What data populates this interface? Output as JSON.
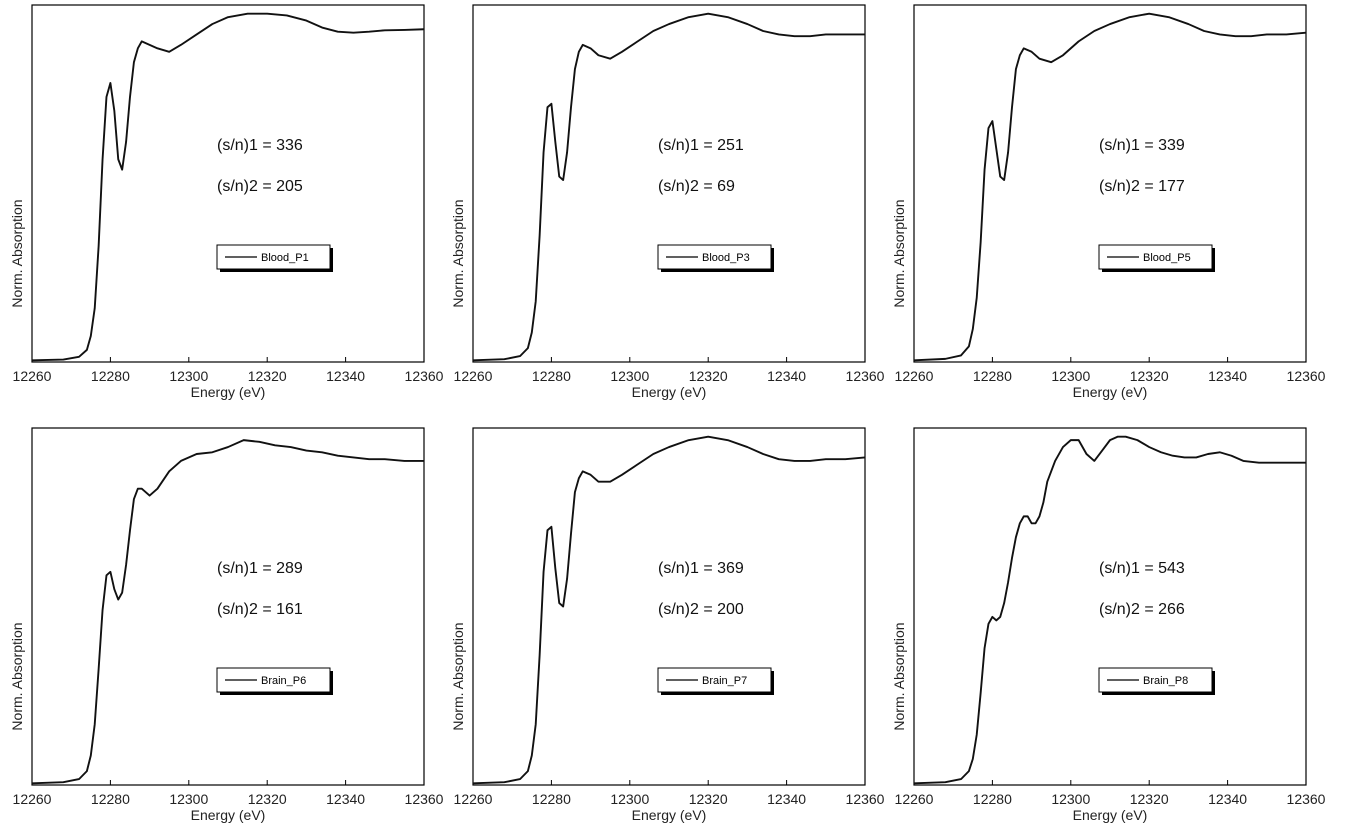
{
  "chart_data": [
    {
      "type": "line",
      "xlabel": "Energy (eV)",
      "ylabel": "Norm. Absorption",
      "xlim": [
        12260,
        12360
      ],
      "x_ticks": [
        "12260",
        "12280",
        "12300",
        "12320",
        "12340",
        "12360"
      ],
      "y_ticks_shown": false,
      "legend": {
        "position": "center",
        "entries": [
          "Blood_P1"
        ]
      },
      "annotations": [
        "(s/n)1 = 336",
        "(s/n)2 = 205"
      ],
      "series": [
        {
          "name": "Blood_P1",
          "x": [
            12260,
            12268,
            12272,
            12274,
            12275,
            12276,
            12277,
            12278,
            12279,
            12280,
            12281,
            12282,
            12283,
            12284,
            12285,
            12286,
            12287,
            12288,
            12290,
            12292,
            12295,
            12298,
            12302,
            12306,
            12310,
            12315,
            12320,
            12325,
            12330,
            12334,
            12338,
            12342,
            12346,
            12350,
            12355,
            12360
          ],
          "y": [
            0,
            0.002,
            0.01,
            0.03,
            0.07,
            0.15,
            0.33,
            0.58,
            0.76,
            0.8,
            0.72,
            0.58,
            0.55,
            0.63,
            0.76,
            0.86,
            0.9,
            0.92,
            0.91,
            0.9,
            0.89,
            0.91,
            0.94,
            0.97,
            0.99,
            1.0,
            1.0,
            0.995,
            0.98,
            0.96,
            0.948,
            0.945,
            0.948,
            0.952,
            0.953,
            0.955
          ]
        }
      ]
    },
    {
      "type": "line",
      "xlabel": "Energy (eV)",
      "ylabel": "Norm. Absorption",
      "xlim": [
        12260,
        12360
      ],
      "x_ticks": [
        "12260",
        "12280",
        "12300",
        "12320",
        "12340",
        "12360"
      ],
      "y_ticks_shown": false,
      "legend": {
        "position": "center",
        "entries": [
          "Blood_P3"
        ]
      },
      "annotations": [
        "(s/n)1 = 251",
        "(s/n)2 = 69"
      ],
      "series": [
        {
          "name": "Blood_P3",
          "x": [
            12260,
            12268,
            12272,
            12274,
            12275,
            12276,
            12277,
            12278,
            12279,
            12280,
            12281,
            12282,
            12283,
            12284,
            12285,
            12286,
            12287,
            12288,
            12290,
            12292,
            12295,
            12298,
            12302,
            12306,
            12310,
            12315,
            12320,
            12325,
            12330,
            12334,
            12338,
            12342,
            12346,
            12350,
            12355,
            12360
          ],
          "y": [
            0,
            0.003,
            0.012,
            0.035,
            0.08,
            0.17,
            0.36,
            0.6,
            0.73,
            0.74,
            0.63,
            0.53,
            0.52,
            0.6,
            0.73,
            0.84,
            0.89,
            0.91,
            0.9,
            0.88,
            0.87,
            0.89,
            0.92,
            0.95,
            0.97,
            0.99,
            1.0,
            0.99,
            0.97,
            0.95,
            0.94,
            0.935,
            0.935,
            0.94,
            0.94,
            0.94
          ]
        }
      ]
    },
    {
      "type": "line",
      "xlabel": "Energy (eV)",
      "ylabel": "Norm. Absorption",
      "xlim": [
        12260,
        12360
      ],
      "x_ticks": [
        "12260",
        "12280",
        "12300",
        "12320",
        "12340",
        "12360"
      ],
      "y_ticks_shown": false,
      "legend": {
        "position": "center",
        "entries": [
          "Blood_P5"
        ]
      },
      "annotations": [
        "(s/n)1 = 339",
        "(s/n)2 = 177"
      ],
      "series": [
        {
          "name": "Blood_P5",
          "x": [
            12260,
            12268,
            12272,
            12274,
            12275,
            12276,
            12277,
            12278,
            12279,
            12280,
            12281,
            12282,
            12283,
            12284,
            12285,
            12286,
            12287,
            12288,
            12290,
            12292,
            12295,
            12298,
            12302,
            12306,
            12310,
            12315,
            12320,
            12325,
            12330,
            12334,
            12338,
            12342,
            12346,
            12350,
            12355,
            12360
          ],
          "y": [
            0,
            0.004,
            0.014,
            0.04,
            0.09,
            0.18,
            0.34,
            0.55,
            0.67,
            0.69,
            0.61,
            0.53,
            0.52,
            0.6,
            0.73,
            0.84,
            0.88,
            0.9,
            0.89,
            0.87,
            0.86,
            0.88,
            0.92,
            0.95,
            0.97,
            0.99,
            1.0,
            0.99,
            0.97,
            0.95,
            0.94,
            0.935,
            0.935,
            0.94,
            0.94,
            0.945
          ]
        }
      ]
    },
    {
      "type": "line",
      "xlabel": "Energy (eV)",
      "ylabel": "Norm. Absorption",
      "xlim": [
        12260,
        12360
      ],
      "x_ticks": [
        "12260",
        "12280",
        "12300",
        "12320",
        "12340",
        "12360"
      ],
      "y_ticks_shown": false,
      "legend": {
        "position": "center",
        "entries": [
          "Brain_P6"
        ]
      },
      "annotations": [
        "(s/n)1 = 289",
        "(s/n)2 = 161"
      ],
      "series": [
        {
          "name": "Brain_P6",
          "x": [
            12260,
            12268,
            12272,
            12274,
            12275,
            12276,
            12277,
            12278,
            12279,
            12280,
            12281,
            12282,
            12283,
            12284,
            12285,
            12286,
            12287,
            12288,
            12290,
            12292,
            12295,
            12298,
            12302,
            12306,
            12310,
            12314,
            12318,
            12322,
            12326,
            12330,
            12334,
            12338,
            12342,
            12346,
            12350,
            12355,
            12360
          ],
          "y": [
            0,
            0.003,
            0.012,
            0.035,
            0.08,
            0.17,
            0.33,
            0.5,
            0.6,
            0.61,
            0.56,
            0.53,
            0.55,
            0.63,
            0.73,
            0.82,
            0.85,
            0.85,
            0.83,
            0.85,
            0.9,
            0.93,
            0.95,
            0.955,
            0.97,
            0.99,
            0.985,
            0.975,
            0.97,
            0.96,
            0.955,
            0.945,
            0.94,
            0.935,
            0.935,
            0.93,
            0.93
          ]
        }
      ]
    },
    {
      "type": "line",
      "xlabel": "Energy (eV)",
      "ylabel": "Norm. Absorption",
      "xlim": [
        12260,
        12360
      ],
      "x_ticks": [
        "12260",
        "12280",
        "12300",
        "12320",
        "12340",
        "12360"
      ],
      "y_ticks_shown": false,
      "legend": {
        "position": "center",
        "entries": [
          "Brain_P7"
        ]
      },
      "annotations": [
        "(s/n)1 = 369",
        "(s/n)2 = 200"
      ],
      "series": [
        {
          "name": "Brain_P7",
          "x": [
            12260,
            12268,
            12272,
            12274,
            12275,
            12276,
            12277,
            12278,
            12279,
            12280,
            12281,
            12282,
            12283,
            12284,
            12285,
            12286,
            12287,
            12288,
            12290,
            12292,
            12295,
            12298,
            12302,
            12306,
            12310,
            12315,
            12320,
            12325,
            12330,
            12334,
            12338,
            12342,
            12346,
            12350,
            12355,
            12360
          ],
          "y": [
            0,
            0.003,
            0.012,
            0.035,
            0.08,
            0.17,
            0.37,
            0.61,
            0.73,
            0.74,
            0.62,
            0.52,
            0.51,
            0.59,
            0.72,
            0.84,
            0.88,
            0.9,
            0.89,
            0.87,
            0.87,
            0.89,
            0.92,
            0.95,
            0.97,
            0.99,
            1.0,
            0.99,
            0.97,
            0.95,
            0.935,
            0.93,
            0.93,
            0.935,
            0.935,
            0.94
          ]
        }
      ]
    },
    {
      "type": "line",
      "xlabel": "Energy (eV)",
      "ylabel": "Norm. Absorption",
      "xlim": [
        12260,
        12360
      ],
      "x_ticks": [
        "12260",
        "12280",
        "12300",
        "12320",
        "12340",
        "12360"
      ],
      "y_ticks_shown": false,
      "legend": {
        "position": "center",
        "entries": [
          "Brain_P8"
        ]
      },
      "annotations": [
        "(s/n)1 = 543",
        "(s/n)2 = 266"
      ],
      "series": [
        {
          "name": "Brain_P8",
          "x": [
            12260,
            12268,
            12272,
            12274,
            12275,
            12276,
            12277,
            12278,
            12279,
            12280,
            12281,
            12282,
            12283,
            12284,
            12285,
            12286,
            12287,
            12288,
            12289,
            12290,
            12291,
            12292,
            12293,
            12294,
            12296,
            12298,
            12300,
            12302,
            12304,
            12306,
            12308,
            12310,
            12312,
            12314,
            12317,
            12320,
            12323,
            12326,
            12329,
            12332,
            12335,
            12338,
            12341,
            12344,
            12348,
            12352,
            12356,
            12360
          ],
          "y": [
            0,
            0.003,
            0.012,
            0.035,
            0.07,
            0.14,
            0.26,
            0.39,
            0.46,
            0.48,
            0.47,
            0.48,
            0.52,
            0.58,
            0.65,
            0.71,
            0.75,
            0.77,
            0.77,
            0.75,
            0.75,
            0.77,
            0.81,
            0.87,
            0.93,
            0.97,
            0.99,
            0.99,
            0.95,
            0.93,
            0.96,
            0.99,
            1.0,
            1.0,
            0.99,
            0.97,
            0.955,
            0.945,
            0.94,
            0.94,
            0.95,
            0.955,
            0.945,
            0.93,
            0.925,
            0.925,
            0.925,
            0.925
          ]
        }
      ]
    }
  ]
}
